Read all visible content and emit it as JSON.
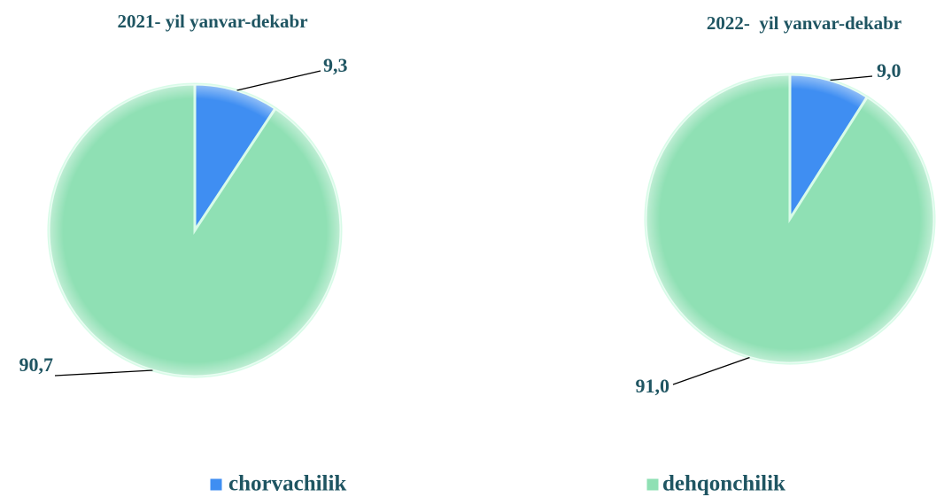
{
  "chart_data": [
    {
      "type": "pie",
      "title": "2021- yil yanvar-dekabr",
      "categories": [
        "chorvachilik",
        "dehqonchilik"
      ],
      "values": [
        9.3,
        90.7
      ],
      "value_labels": [
        "9,3",
        "90,7"
      ],
      "colors": [
        "#3f8ef2",
        "#8fe0b4"
      ]
    },
    {
      "type": "pie",
      "title": "2022-  yil yanvar-dekabr",
      "categories": [
        "chorvachilik",
        "dehqonchilik"
      ],
      "values": [
        9.0,
        91.0
      ],
      "value_labels": [
        "9,0",
        "91,0"
      ],
      "colors": [
        "#3f8ef2",
        "#8fe0b4"
      ]
    }
  ]
}
